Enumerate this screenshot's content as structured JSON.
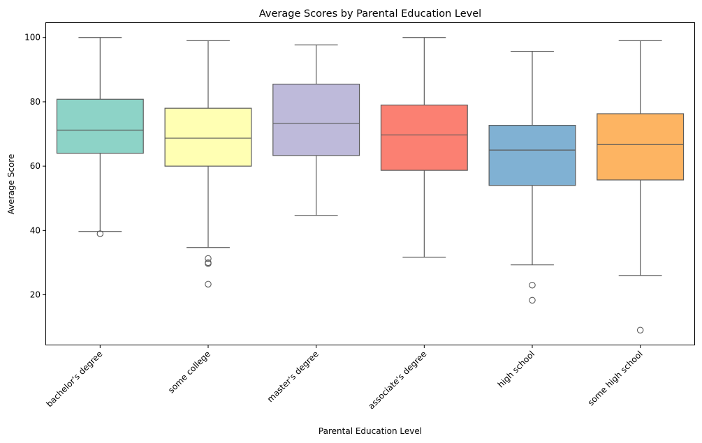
{
  "chart_data": {
    "type": "box",
    "title": "Average Scores by Parental Education Level",
    "xlabel": "Parental Education Level",
    "ylabel": "Average Score",
    "ylim": [
      4.5,
      104.5
    ],
    "yticks": [
      20,
      40,
      60,
      80,
      100
    ],
    "grid": false,
    "legend": "none",
    "categories": [
      "bachelor's degree",
      "some college",
      "master's degree",
      "associate's degree",
      "high school",
      "some high school"
    ],
    "series": [
      {
        "category": "bachelor's degree",
        "whisker_low": 39.7,
        "q1": 64.0,
        "median": 71.2,
        "q3": 80.8,
        "whisker_high": 100.0,
        "outliers": [
          39.0
        ],
        "color": "#8dd3c7"
      },
      {
        "category": "some college",
        "whisker_low": 34.7,
        "q1": 60.0,
        "median": 68.7,
        "q3": 78.0,
        "whisker_high": 99.0,
        "outliers": [
          31.3,
          30.0,
          29.7,
          23.3
        ],
        "color": "#ffffb3"
      },
      {
        "category": "master's degree",
        "whisker_low": 44.7,
        "q1": 63.3,
        "median": 73.3,
        "q3": 85.5,
        "whisker_high": 97.7,
        "outliers": [],
        "color": "#bebada"
      },
      {
        "category": "associate's degree",
        "whisker_low": 31.7,
        "q1": 58.7,
        "median": 69.7,
        "q3": 79.0,
        "whisker_high": 100.0,
        "outliers": [],
        "color": "#fb8072"
      },
      {
        "category": "high school",
        "whisker_low": 29.3,
        "q1": 54.0,
        "median": 65.0,
        "q3": 72.7,
        "whisker_high": 95.7,
        "outliers": [
          23.0,
          18.3
        ],
        "color": "#80b1d3"
      },
      {
        "category": "some high school",
        "whisker_low": 26.0,
        "q1": 55.7,
        "median": 66.7,
        "q3": 76.3,
        "whisker_high": 99.0,
        "outliers": [
          9.0
        ],
        "color": "#fdb462"
      }
    ]
  }
}
